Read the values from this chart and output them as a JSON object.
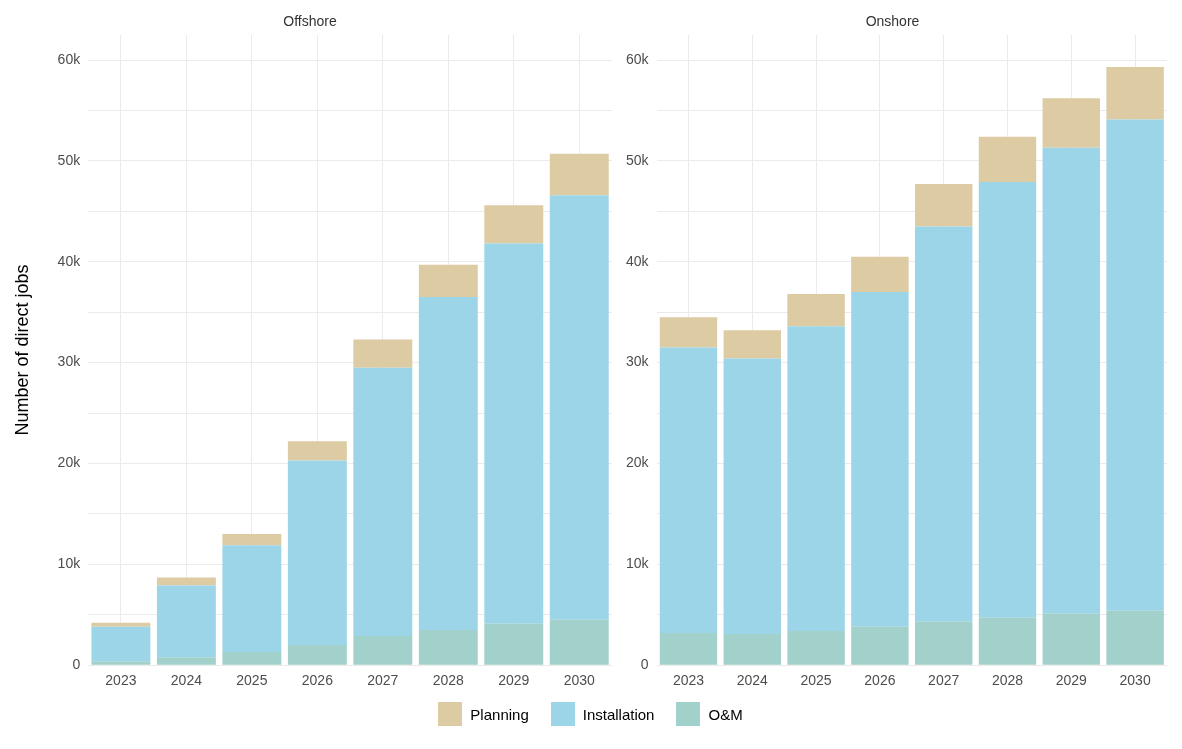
{
  "chart_data": [
    {
      "type": "bar",
      "title": "Offshore",
      "ylabel": "Number of direct jobs",
      "stacked": true,
      "grid": true,
      "legend": "bottom",
      "categories": [
        "2023",
        "2024",
        "2025",
        "2026",
        "2027",
        "2028",
        "2029",
        "2030"
      ],
      "ylim": [
        0,
        62500
      ],
      "yticks": [
        0,
        {
          "value": 5000,
          "label": null
        },
        {
          "value": 10000,
          "label": "10k"
        },
        {
          "value": 15000,
          "label": null
        },
        {
          "value": 20000,
          "label": "20k"
        },
        {
          "value": 25000,
          "label": null
        },
        {
          "value": 30000,
          "label": "30k"
        },
        {
          "value": 35000,
          "label": null
        },
        {
          "value": 40000,
          "label": "40k"
        },
        {
          "value": 45000,
          "label": null
        },
        {
          "value": 50000,
          "label": "50k"
        },
        {
          "value": 55000,
          "label": null
        },
        {
          "value": 60000,
          "label": "60k"
        }
      ],
      "series": [
        {
          "name": "O&M",
          "color": "#a2d0cb",
          "values": [
            400,
            800,
            1300,
            2000,
            2900,
            3500,
            4100,
            4500
          ]
        },
        {
          "name": "Installation",
          "color": "#9cd5e8",
          "values": [
            3400,
            7100,
            10600,
            18300,
            26600,
            33000,
            37700,
            42100
          ]
        },
        {
          "name": "Planning",
          "color": "#dccba3",
          "values": [
            400,
            800,
            1100,
            1900,
            2800,
            3200,
            3800,
            4100
          ]
        }
      ]
    },
    {
      "type": "bar",
      "title": "Onshore",
      "stacked": true,
      "grid": true,
      "categories": [
        "2023",
        "2024",
        "2025",
        "2026",
        "2027",
        "2028",
        "2029",
        "2030"
      ],
      "ylim": [
        0,
        62500
      ],
      "yticks": [
        0,
        {
          "value": 5000,
          "label": null
        },
        {
          "value": 10000,
          "label": "10k"
        },
        {
          "value": 15000,
          "label": null
        },
        {
          "value": 20000,
          "label": "20k"
        },
        {
          "value": 25000,
          "label": null
        },
        {
          "value": 30000,
          "label": "30k"
        },
        {
          "value": 35000,
          "label": null
        },
        {
          "value": 40000,
          "label": "40k"
        },
        {
          "value": 45000,
          "label": null
        },
        {
          "value": 50000,
          "label": "50k"
        },
        {
          "value": 55000,
          "label": null
        },
        {
          "value": 60000,
          "label": "60k"
        }
      ],
      "series": [
        {
          "color": "#a2d0cb",
          "values": [
            3200,
            3100,
            3400,
            3800,
            4300,
            4700,
            5100,
            5400
          ]
        },
        {
          "color": "#9cd5e8",
          "values": [
            28300,
            27300,
            30200,
            33200,
            39200,
            43200,
            46200,
            48700
          ]
        },
        {
          "color": "#dccba3",
          "values": [
            3000,
            2800,
            3200,
            3500,
            4200,
            4500,
            4900,
            5200
          ]
        }
      ]
    }
  ]
}
